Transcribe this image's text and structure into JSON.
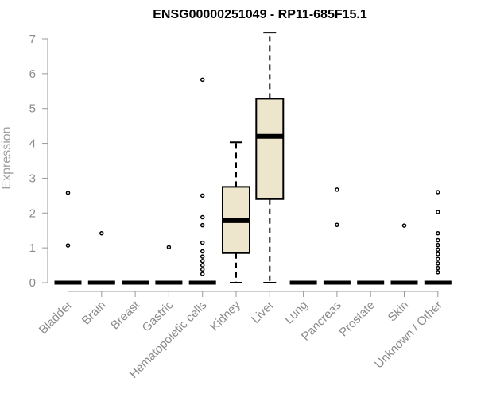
{
  "chart_data": {
    "type": "box",
    "title": "ENSG00000251049 - RP11-685F15.1",
    "xlabel": "",
    "ylabel": "Expression",
    "ylim": [
      0,
      7.2
    ],
    "yticks": [
      0,
      1,
      2,
      3,
      4,
      5,
      6,
      7
    ],
    "grid": false,
    "colors": {
      "box_fill": "#ede6cd",
      "box_stroke": "#000000",
      "axis": "#999999",
      "tick_label": "#8a8a8a",
      "axis_title": "#a0a0a0"
    },
    "categories": [
      "Bladder",
      "Brain",
      "Breast",
      "Gastric",
      "Hematopoietic cells",
      "Kidney",
      "Liver",
      "Lung",
      "Pancreas",
      "Prostate",
      "Skin",
      "Unknown / Other"
    ],
    "boxes": [
      {
        "min": 0,
        "q1": 0,
        "median": 0,
        "q3": 0,
        "max": 0,
        "outliers": [
          1.07,
          2.58
        ]
      },
      {
        "min": 0,
        "q1": 0,
        "median": 0,
        "q3": 0,
        "max": 0,
        "outliers": [
          1.42
        ]
      },
      {
        "min": 0,
        "q1": 0,
        "median": 0,
        "q3": 0,
        "max": 0,
        "outliers": []
      },
      {
        "min": 0,
        "q1": 0,
        "median": 0,
        "q3": 0,
        "max": 0,
        "outliers": [
          1.02
        ]
      },
      {
        "min": 0,
        "q1": 0,
        "median": 0,
        "q3": 0,
        "max": 0,
        "outliers": [
          0.25,
          0.38,
          0.5,
          0.62,
          0.75,
          0.9,
          1.15,
          1.65,
          1.88,
          2.5,
          5.83
        ]
      },
      {
        "min": 0,
        "q1": 0.85,
        "median": 1.78,
        "q3": 2.75,
        "max": 4.03,
        "outliers": []
      },
      {
        "min": 0,
        "q1": 2.4,
        "median": 4.2,
        "q3": 5.28,
        "max": 7.18,
        "outliers": []
      },
      {
        "min": 0,
        "q1": 0,
        "median": 0,
        "q3": 0,
        "max": 0,
        "outliers": []
      },
      {
        "min": 0,
        "q1": 0,
        "median": 0,
        "q3": 0,
        "max": 0,
        "outliers": [
          1.66,
          2.67
        ]
      },
      {
        "min": 0,
        "q1": 0,
        "median": 0,
        "q3": 0,
        "max": 0,
        "outliers": []
      },
      {
        "min": 0,
        "q1": 0,
        "median": 0,
        "q3": 0,
        "max": 0,
        "outliers": [
          1.64
        ]
      },
      {
        "min": 0,
        "q1": 0,
        "median": 0,
        "q3": 0,
        "max": 0,
        "outliers": [
          0.3,
          0.42,
          0.55,
          0.68,
          0.82,
          0.95,
          1.08,
          1.22,
          1.42,
          2.03,
          2.6
        ]
      }
    ]
  }
}
